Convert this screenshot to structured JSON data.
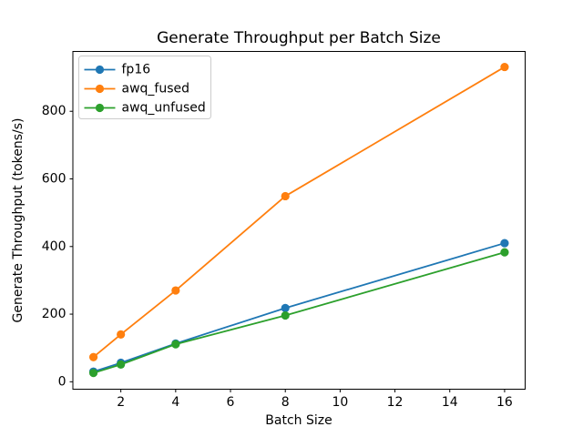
{
  "chart_data": {
    "type": "line",
    "title": "Generate Throughput per Batch Size",
    "xlabel": "Batch Size",
    "ylabel": "Generate Throughput (tokens/s)",
    "x": [
      1,
      2,
      4,
      8,
      16
    ],
    "series": [
      {
        "name": "fp16",
        "color": "#1f77b4",
        "values": [
          30,
          56,
          113,
          218,
          410
        ]
      },
      {
        "name": "awq_fused",
        "color": "#ff7f0e",
        "values": [
          73,
          140,
          270,
          549,
          931
        ]
      },
      {
        "name": "awq_unfused",
        "color": "#2ca02c",
        "values": [
          26,
          51,
          111,
          196,
          383
        ]
      }
    ],
    "xlim": [
      0.25,
      16.75
    ],
    "ylim": [
      -22,
      977
    ],
    "x_ticks": [
      2,
      4,
      6,
      8,
      10,
      12,
      14,
      16
    ],
    "y_ticks": [
      0,
      200,
      400,
      600,
      800
    ],
    "grid": false,
    "legend_position": "upper-left",
    "marker": "o",
    "line_width": 1.8,
    "marker_radius": 4.6,
    "frame_color": "#000000",
    "legend_border_color": "#cccccc",
    "background_color": "#ffffff"
  }
}
